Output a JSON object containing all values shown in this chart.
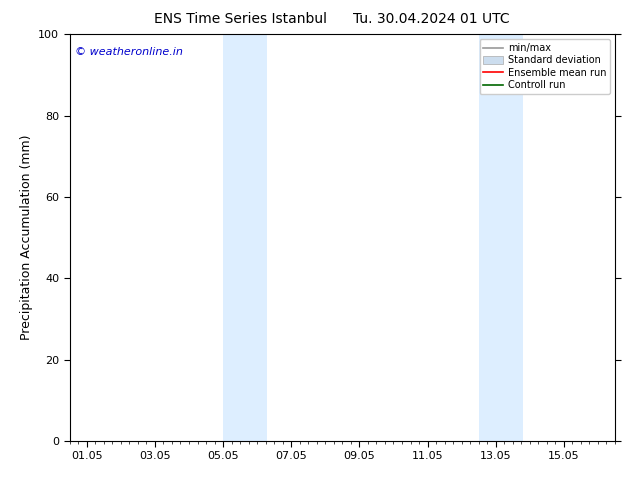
{
  "title": "ENS Time Series Istanbul",
  "title2": "Tu. 30.04.2024 01 UTC",
  "ylabel": "Precipitation Accumulation (mm)",
  "ylim": [
    0,
    100
  ],
  "yticks": [
    0,
    20,
    40,
    60,
    80,
    100
  ],
  "xtick_labels": [
    "01.05",
    "03.05",
    "05.05",
    "07.05",
    "09.05",
    "11.05",
    "13.05",
    "15.05"
  ],
  "xtick_positions": [
    0,
    2,
    4,
    6,
    8,
    10,
    12,
    14
  ],
  "xmin": -0.5,
  "xmax": 15.5,
  "shaded_regions": [
    {
      "xmin": 4.0,
      "xmax": 5.3,
      "color": "#ddeeff"
    },
    {
      "xmin": 11.5,
      "xmax": 12.8,
      "color": "#ddeeff"
    }
  ],
  "watermark_text": "© weatheronline.in",
  "watermark_color": "#0000cc",
  "legend_entries": [
    {
      "label": "min/max",
      "color": "#999999",
      "lw": 1.2
    },
    {
      "label": "Standard deviation",
      "color": "#ccddee",
      "lw": 5
    },
    {
      "label": "Ensemble mean run",
      "color": "#ff0000",
      "lw": 1.2
    },
    {
      "label": "Controll run",
      "color": "#006600",
      "lw": 1.2
    }
  ],
  "bg_color": "#ffffff",
  "spine_color": "#000000",
  "title_fontsize": 10,
  "tick_fontsize": 8,
  "ylabel_fontsize": 9,
  "watermark_fontsize": 8
}
